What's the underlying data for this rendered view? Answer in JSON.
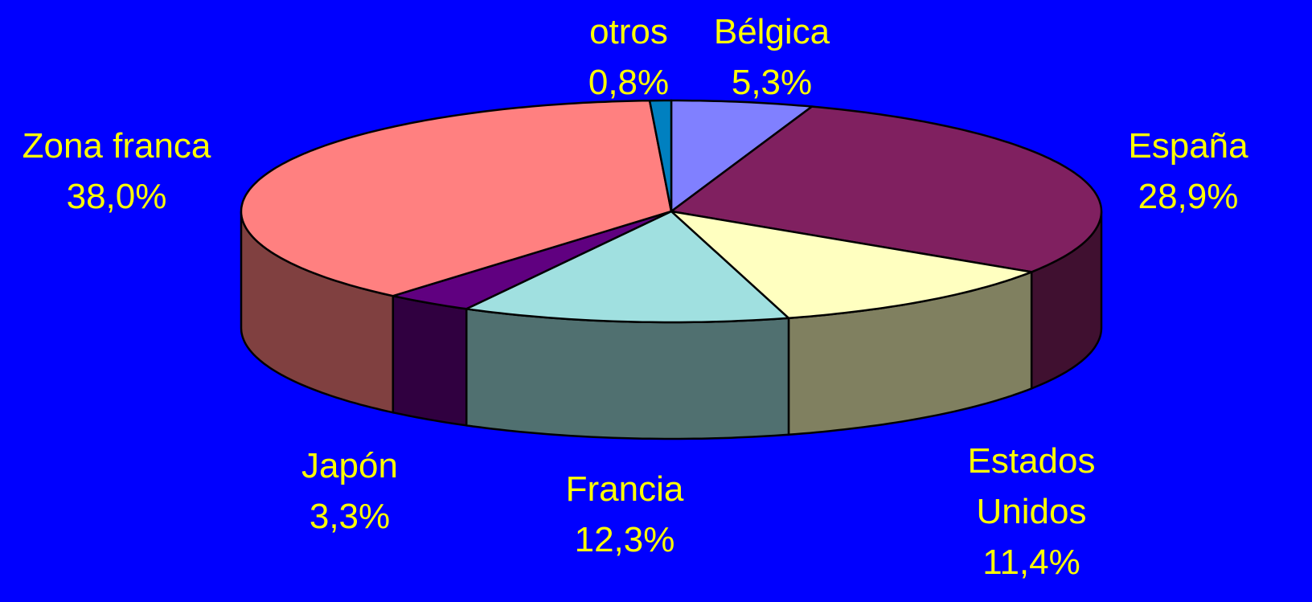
{
  "chart_data": {
    "type": "pie3d",
    "categories": [
      "Bélgica",
      "España",
      "Estados Unidos",
      "Francia",
      "Japón",
      "Zona franca",
      "otros"
    ],
    "values": [
      5.3,
      28.9,
      11.4,
      12.3,
      3.3,
      38.0,
      0.8
    ],
    "value_labels": [
      "5,3%",
      "28,9%",
      "11,4%",
      "12,3%",
      "3,3%",
      "38,0%",
      "0,8%"
    ],
    "colors": [
      "#8080ff",
      "#802060",
      "#ffffc0",
      "#a0e0e0",
      "#600080",
      "#ff8080",
      "#0080c0"
    ]
  }
}
